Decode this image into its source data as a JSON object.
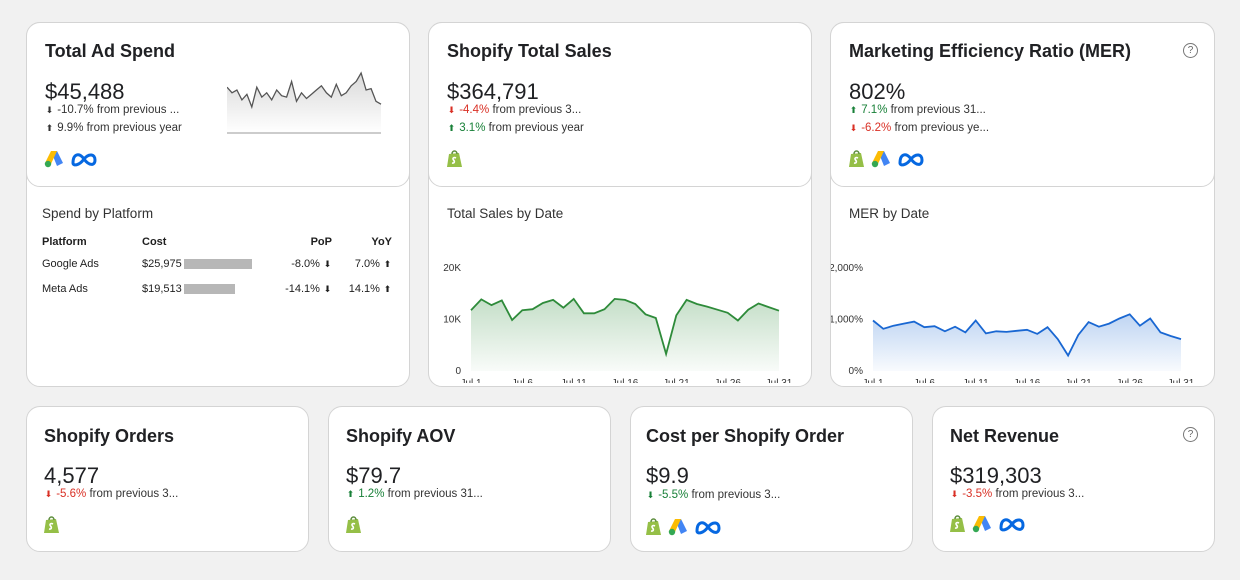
{
  "total_ad_spend": {
    "title": "Total Ad Spend",
    "value": "$45,488",
    "pop": {
      "text": "-10.7% from previous ...",
      "direction": "down"
    },
    "yoy": {
      "text": "9.9% from previous year",
      "direction": "up"
    },
    "icons": [
      "google-ads-icon",
      "meta-icon"
    ],
    "sparkline": [
      62,
      58,
      60,
      53,
      57,
      48,
      62,
      55,
      58,
      53,
      60,
      56,
      55,
      66,
      52,
      58,
      54,
      57,
      60,
      63,
      58,
      55,
      64,
      56,
      58,
      63,
      66,
      72,
      60,
      61,
      52,
      50
    ]
  },
  "shopify_total_sales": {
    "title": "Shopify Total Sales",
    "value": "$364,791",
    "pop": {
      "text": "-4.4% from previous 3...",
      "direction": "down"
    },
    "yoy": {
      "text": "3.1% from previous year",
      "direction": "up"
    }
  },
  "mer": {
    "title": "Marketing Efficiency Ratio (MER)",
    "value": "802%",
    "pop": {
      "text": "7.1% from previous 31...",
      "direction": "up"
    },
    "yoy": {
      "text": "-6.2% from previous ye...",
      "direction": "down"
    }
  },
  "spend_by_platform": {
    "title": "Spend by Platform",
    "headers": [
      "Platform",
      "Cost",
      "PoP",
      "YoY"
    ],
    "rows": [
      {
        "platform": "Google Ads",
        "cost": "$25,975",
        "share": 1.0,
        "pop": "-8.0%",
        "pop_dir": "down",
        "yoy": "7.0%",
        "yoy_dir": "up"
      },
      {
        "platform": "Meta Ads",
        "cost": "$19,513",
        "share": 0.75,
        "pop": "-14.1%",
        "pop_dir": "down",
        "yoy": "14.1%",
        "yoy_dir": "up"
      }
    ]
  },
  "chart_data": [
    {
      "type": "area",
      "title": "Total Sales by Date",
      "x": [
        "Jul 1",
        "Jul 2",
        "Jul 3",
        "Jul 4",
        "Jul 5",
        "Jul 6",
        "Jul 7",
        "Jul 8",
        "Jul 9",
        "Jul 10",
        "Jul 11",
        "Jul 12",
        "Jul 13",
        "Jul 14",
        "Jul 15",
        "Jul 16",
        "Jul 17",
        "Jul 18",
        "Jul 19",
        "Jul 20",
        "Jul 21",
        "Jul 22",
        "Jul 23",
        "Jul 24",
        "Jul 25",
        "Jul 26",
        "Jul 27",
        "Jul 28",
        "Jul 29",
        "Jul 30",
        "Jul 31"
      ],
      "values": [
        11800,
        13900,
        12800,
        13700,
        9900,
        11800,
        12000,
        13200,
        13800,
        12300,
        14000,
        11200,
        11200,
        12000,
        14000,
        13800,
        13000,
        11000,
        10300,
        3300,
        10800,
        13800,
        13000,
        12500,
        11900,
        11300,
        9800,
        11900,
        13100,
        12400,
        11700
      ],
      "xticks": [
        "Jul 1",
        "Jul 6",
        "Jul 11",
        "Jul 16",
        "Jul 21",
        "Jul 26",
        "Jul 31"
      ],
      "yticks": [
        "0",
        "10K",
        "20K"
      ],
      "ylim": [
        0,
        20000
      ],
      "color": "#2e8b3a"
    },
    {
      "type": "area",
      "title": "MER by Date",
      "x": [
        "Jul 1",
        "Jul 2",
        "Jul 3",
        "Jul 4",
        "Jul 5",
        "Jul 6",
        "Jul 7",
        "Jul 8",
        "Jul 9",
        "Jul 10",
        "Jul 11",
        "Jul 12",
        "Jul 13",
        "Jul 14",
        "Jul 15",
        "Jul 16",
        "Jul 17",
        "Jul 18",
        "Jul 19",
        "Jul 20",
        "Jul 21",
        "Jul 22",
        "Jul 23",
        "Jul 24",
        "Jul 25",
        "Jul 26",
        "Jul 27",
        "Jul 28",
        "Jul 29",
        "Jul 30",
        "Jul 31"
      ],
      "values": [
        980,
        820,
        880,
        920,
        960,
        850,
        870,
        770,
        860,
        750,
        980,
        730,
        770,
        760,
        780,
        800,
        720,
        850,
        620,
        300,
        700,
        950,
        860,
        920,
        1020,
        1100,
        880,
        1020,
        750,
        680,
        620
      ],
      "xticks": [
        "Jul 1",
        "Jul 6",
        "Jul 11",
        "Jul 16",
        "Jul 21",
        "Jul 26",
        "Jul 31"
      ],
      "yticks": [
        "0%",
        "1,000%",
        "2,000%"
      ],
      "ylim": [
        0,
        2000
      ],
      "color": "#1967d2"
    }
  ],
  "shopify_orders": {
    "title": "Shopify Orders",
    "value": "4,577",
    "pop": {
      "text": "-5.6% from previous 3...",
      "direction": "down"
    }
  },
  "shopify_aov": {
    "title": "Shopify AOV",
    "value": "$79.7",
    "pop": {
      "text": "1.2% from previous 31...",
      "direction": "up"
    }
  },
  "cost_per_order": {
    "title": "Cost per Shopify Order",
    "value": "$9.9",
    "pop": {
      "text": "-5.5% from previous 3...",
      "direction": "down"
    }
  },
  "net_revenue": {
    "title": "Net Revenue",
    "value": "$319,303",
    "pop": {
      "text": "-3.5% from previous 3...",
      "direction": "down"
    }
  },
  "help_icon_label": "?",
  "colors": {
    "red": "#d93025",
    "green": "#188038",
    "google_blue": "#4285f4",
    "google_yellow": "#fbbc04",
    "meta_blue": "#0668e1",
    "shopify_green": "#95bf47"
  }
}
